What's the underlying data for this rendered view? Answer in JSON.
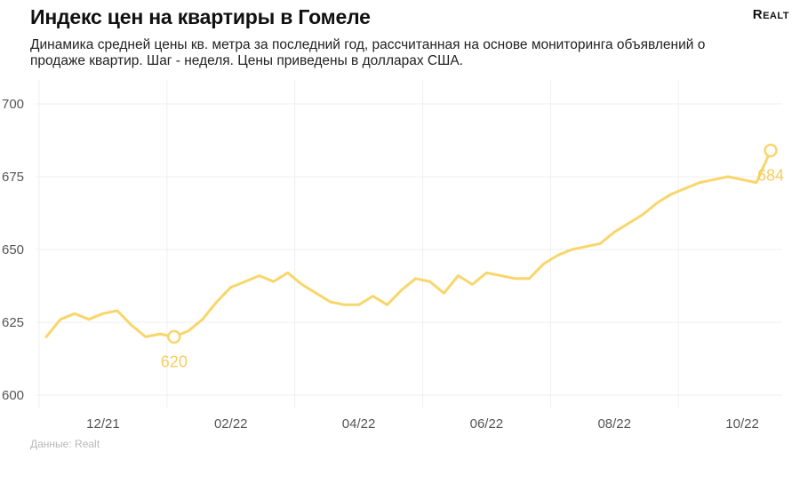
{
  "header": {
    "title": "Индекс цен на квартиры в Гомеле",
    "logo": "Realt",
    "subtitle": "Динамика средней цены кв. метра за последний год, рассчитанная на основе мониторинга объявлений о продаже квартир. Шаг - неделя. Цены приведены в долларах США."
  },
  "footer": {
    "source": "Данные: Realt"
  },
  "colors": {
    "series": "#f9d66b",
    "label": "#f5cf5f",
    "grid": "#efefef"
  },
  "chart_data": {
    "type": "line",
    "title": "Индекс цен на квартиры в Гомеле",
    "xlabel": "",
    "ylabel": "",
    "ylim": [
      600,
      700
    ],
    "yticks": [
      600,
      625,
      650,
      675,
      700
    ],
    "xticks": [
      {
        "label": "12/21",
        "index": 4
      },
      {
        "label": "02/22",
        "index": 13
      },
      {
        "label": "04/22",
        "index": 22
      },
      {
        "label": "06/22",
        "index": 31
      },
      {
        "label": "08/22",
        "index": 40
      },
      {
        "label": "10/22",
        "index": 49
      }
    ],
    "grid": true,
    "legend": "none",
    "series": [
      {
        "values": [
          620,
          626,
          628,
          626,
          628,
          629,
          624,
          620,
          621,
          620,
          622,
          626,
          632,
          637,
          639,
          641,
          639,
          642,
          638,
          635,
          632,
          631,
          631,
          634,
          631,
          636,
          640,
          639,
          635,
          641,
          638,
          642,
          641,
          640,
          640,
          645,
          648,
          650,
          651,
          652,
          656,
          659,
          662,
          666,
          669,
          671,
          673,
          674,
          675,
          674,
          673,
          684
        ]
      }
    ],
    "annotations": [
      {
        "index": 9,
        "value": 620,
        "label": "620",
        "position": "below"
      },
      {
        "index": 51,
        "value": 684,
        "label": "684",
        "position": "below"
      }
    ]
  }
}
